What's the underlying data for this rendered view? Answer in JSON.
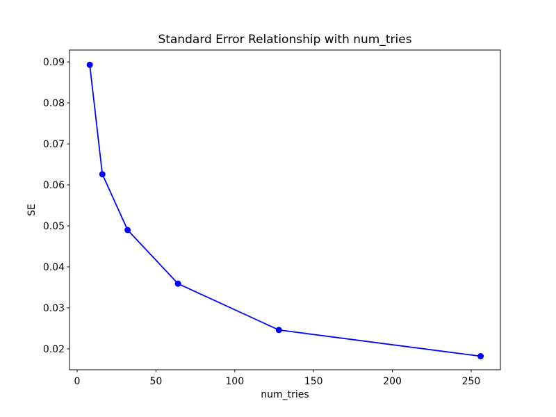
{
  "window": {
    "background": "#ffffff"
  },
  "chart_data": {
    "type": "line",
    "title": "Standard Error Relationship with num_tries",
    "xlabel": "num_tries",
    "ylabel": "SE",
    "x": [
      8,
      16,
      32,
      64,
      128,
      256
    ],
    "series": [
      {
        "values": [
          0.0893,
          0.0626,
          0.049,
          0.0359,
          0.0246,
          0.0182
        ],
        "color": "#0000ff",
        "marker": "circle",
        "line_width": 1.8,
        "marker_radius": 4.5
      }
    ],
    "x_ticks": [
      0,
      50,
      100,
      150,
      200,
      250
    ],
    "x_tick_labels": [
      "0",
      "50",
      "100",
      "150",
      "200",
      "250"
    ],
    "y_ticks": [
      0.02,
      0.03,
      0.04,
      0.05,
      0.06,
      0.07,
      0.08,
      0.09
    ],
    "y_tick_labels": [
      "0.02",
      "0.03",
      "0.04",
      "0.05",
      "0.06",
      "0.07",
      "0.08",
      "0.09"
    ],
    "xlim": [
      -4.85,
      268.55
    ],
    "ylim": [
      0.0149,
      0.0929
    ],
    "grid": false,
    "legend": false,
    "axis_color": "#000000",
    "tick_length": 3.5,
    "plot_background": "#ffffff"
  }
}
